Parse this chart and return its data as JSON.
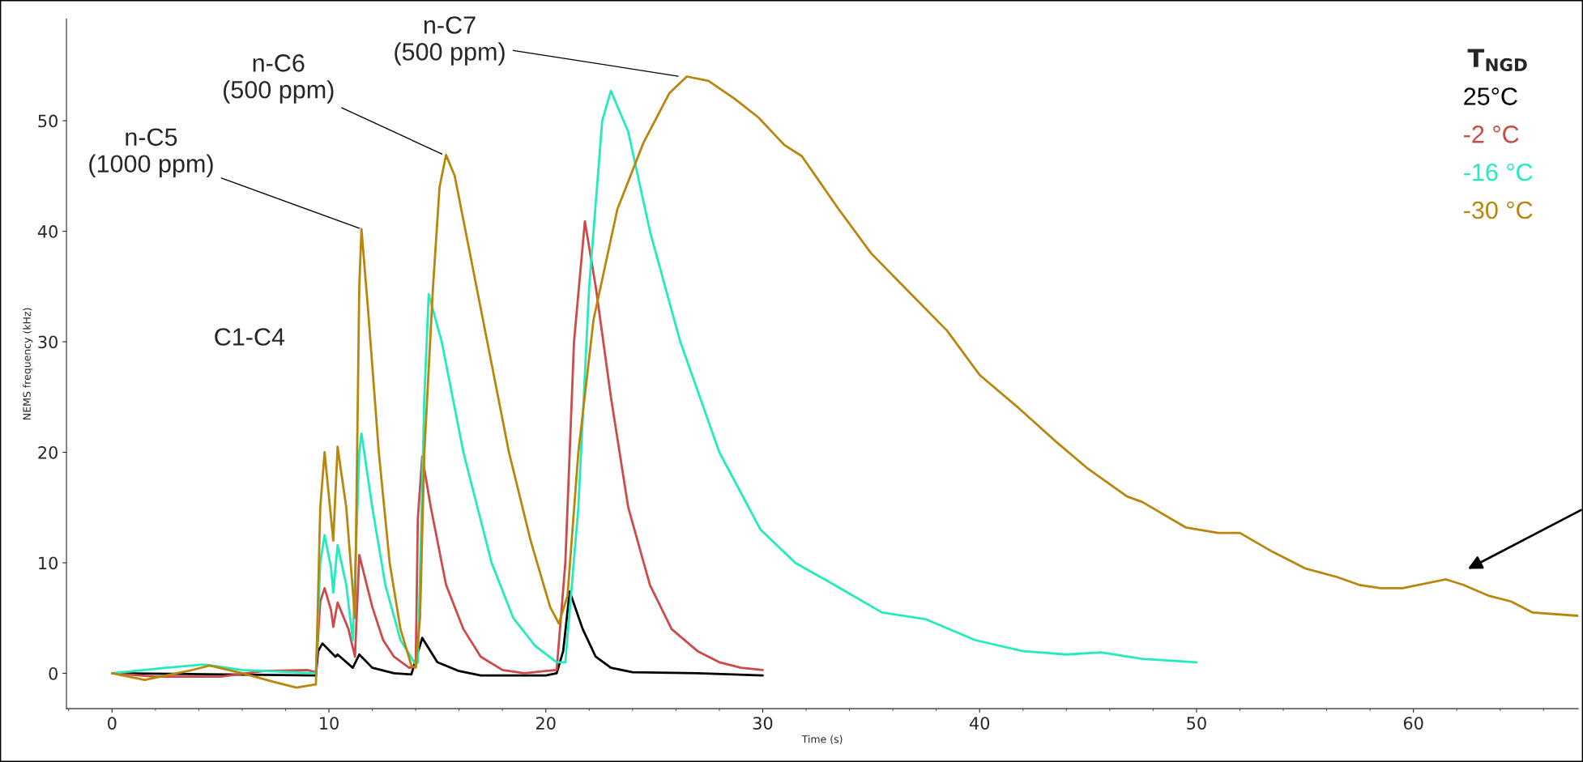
{
  "chart_data": {
    "type": "line",
    "xlabel": "Time (s)",
    "ylabel": "NEMS frequency (kHz)",
    "legend_title": "T$_{NGD}$",
    "xlim": [
      -2.1,
      67.6
    ],
    "ylim": [
      -3.2,
      59.2
    ],
    "xticks": [
      0,
      10,
      20,
      30,
      40,
      50,
      60
    ],
    "yticks": [
      0,
      10,
      20,
      30,
      40,
      50
    ],
    "grid": false,
    "legend": "top right",
    "marker": "none",
    "line_style": "solid",
    "annotations": [
      {
        "text": "n-C5\n(1000 ppm)",
        "x": 11.5,
        "y": 40.2
      },
      {
        "text": "n-C6\n(500 ppm)",
        "x": 15.3,
        "y": 46.9
      },
      {
        "text": "n-C7\n(500 ppm)",
        "x": 26.2,
        "y": 54
      },
      "C1-C4"
    ],
    "series": [
      {
        "name": "25°C",
        "color": "#000000",
        "x": [
          0,
          9.4,
          9.5,
          9.7,
          10.3,
          10.4,
          11.1,
          11.4,
          12,
          13,
          13.8,
          14.3,
          15,
          16,
          17,
          20,
          20.5,
          20.8,
          21.1,
          21.7,
          22.3,
          23,
          24,
          27,
          30
        ],
        "values": [
          0,
          -0.2,
          2,
          2.7,
          1.5,
          1.7,
          0.5,
          1.7,
          0.5,
          0,
          -0.1,
          3.2,
          1,
          0.2,
          -0.2,
          -0.2,
          0,
          2,
          7.4,
          4,
          1.5,
          0.5,
          0.1,
          0,
          -0.2
        ]
      },
      {
        "name": "-2 °C",
        "color": "#cc4a4a",
        "x": [
          0,
          2,
          5,
          7,
          9,
          9.4,
          9.6,
          9.8,
          10.1,
          10.2,
          10.4,
          10.9,
          11.2,
          11.4,
          12,
          12.5,
          13,
          13.7,
          14,
          14.1,
          14.3,
          14.7,
          15.4,
          16.2,
          17,
          18,
          19,
          20,
          20.5,
          20.9,
          21.3,
          21.8,
          22.3,
          23,
          23.8,
          24.8,
          25.8,
          27,
          28,
          29,
          30
        ],
        "values": [
          0,
          -0.3,
          -0.3,
          0.2,
          0.3,
          0.1,
          6.5,
          7.7,
          5.7,
          4.2,
          6.4,
          4,
          1.5,
          10.7,
          6,
          3,
          1.5,
          0.5,
          0.6,
          14,
          19.6,
          15,
          8,
          4,
          1.5,
          0.3,
          0,
          0.2,
          0.3,
          10,
          30,
          40.9,
          35,
          25,
          15,
          8,
          4,
          2,
          1,
          0.5,
          0.3
        ]
      },
      {
        "name": "-16 °C",
        "color": "#22ecbc",
        "x": [
          0,
          2.5,
          4.2,
          6,
          9.4,
          9.6,
          9.8,
          10.1,
          10.2,
          10.4,
          10.8,
          11.1,
          11.4,
          11.5,
          12,
          12.6,
          13.3,
          14,
          14.1,
          14.4,
          14.6,
          15.2,
          16.2,
          17.5,
          18.5,
          19.5,
          20.5,
          20.9,
          21.5,
          22,
          22.6,
          23,
          23.8,
          24.8,
          26.2,
          28,
          29.9,
          31.5,
          33.3,
          35.5,
          37.5,
          39.8,
          42,
          44,
          45.6,
          47.5,
          50
        ],
        "values": [
          0,
          0.5,
          0.8,
          0.3,
          0,
          10,
          12.5,
          9.5,
          7.3,
          11.6,
          8,
          3,
          20,
          21.7,
          15,
          8,
          3,
          0.8,
          1,
          25,
          34.3,
          30,
          20,
          10,
          5,
          2.5,
          1,
          1,
          15,
          35,
          50,
          52.7,
          49,
          40,
          30,
          20,
          13,
          10,
          8,
          5.5,
          4.9,
          3,
          2,
          1.7,
          1.9,
          1.3,
          1
        ]
      },
      {
        "name": "-30 °C",
        "color": "#b8860b",
        "x": [
          0,
          1.5,
          3.5,
          4.5,
          6,
          7.5,
          8.5,
          9.4,
          9.6,
          9.8,
          10,
          10.2,
          10.4,
          10.8,
          11.2,
          11.4,
          11.5,
          11.8,
          12.3,
          12.8,
          13.3,
          13.8,
          14,
          14.2,
          14.4,
          14.8,
          15.1,
          15.4,
          15.8,
          16.5,
          17.3,
          18.3,
          19.3,
          20.2,
          20.6,
          21,
          21.5,
          22.2,
          23.3,
          24.5,
          25.7,
          26.5,
          27.5,
          28.7,
          29.8,
          31,
          31.8,
          33.5,
          35,
          37,
          38.5,
          40,
          41.8,
          43.5,
          45,
          46.8,
          47.5,
          49.5,
          51,
          52,
          53.5,
          55,
          56.5,
          57.5,
          58.5,
          59.5,
          61.5,
          62.3,
          63.5,
          64.5,
          65.5,
          67.6
        ],
        "values": [
          0,
          -0.6,
          0.2,
          0.7,
          0,
          -0.8,
          -1.3,
          -1,
          15,
          20,
          16,
          12,
          20.5,
          15,
          5,
          35,
          40.2,
          33,
          20,
          10,
          4,
          0.7,
          0.5,
          5,
          20,
          35,
          44,
          46.9,
          45,
          38,
          30,
          20,
          12,
          6,
          4.5,
          7,
          20,
          32,
          42,
          48,
          52.5,
          54,
          53.6,
          52,
          50.3,
          47.8,
          46.8,
          42,
          38,
          34,
          31,
          27,
          24,
          21,
          18.5,
          16,
          15.5,
          13.2,
          12.7,
          12.7,
          11,
          9.5,
          8.7,
          8,
          7.7,
          7.7,
          8.5,
          8,
          7,
          6.5,
          5.5,
          5.2
        ]
      }
    ]
  }
}
